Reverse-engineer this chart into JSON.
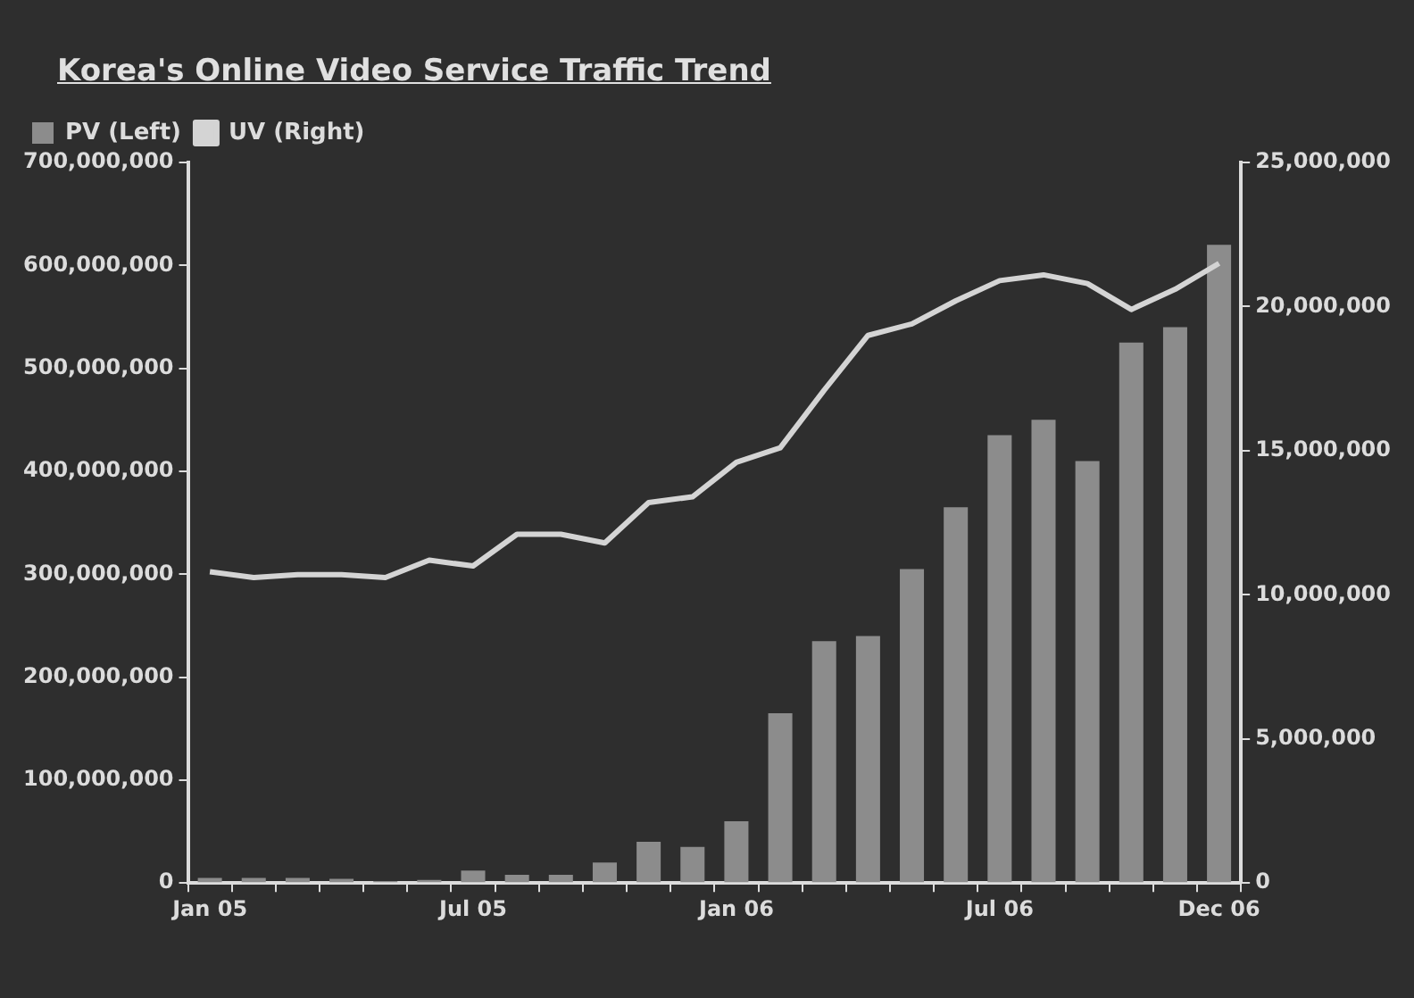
{
  "chart_data": {
    "type": "bar",
    "title": "Korea's Online Video Service Traffic Trend",
    "categories": [
      "Jan 05",
      null,
      null,
      null,
      null,
      null,
      "Jul 05",
      null,
      null,
      null,
      null,
      null,
      "Jan 06",
      null,
      null,
      null,
      null,
      null,
      "Jul 06",
      null,
      null,
      null,
      null,
      "Dec 06"
    ],
    "series": [
      {
        "name": "PV (Left)",
        "color": "#8c8c8c",
        "values": [
          5000000,
          5000000,
          5000000,
          4000000,
          2000000,
          3000000,
          12000000,
          8000000,
          8000000,
          20000000,
          40000000,
          35000000,
          60000000,
          165000000,
          235000000,
          240000000,
          305000000,
          365000000,
          435000000,
          450000000,
          410000000,
          525000000,
          540000000,
          620000000
        ]
      },
      {
        "name": "UV (Right)",
        "type": "line",
        "axis": "y2",
        "color": "#d4d4d4",
        "values": [
          10800000,
          10600000,
          10700000,
          10700000,
          10600000,
          11200000,
          11000000,
          12100000,
          12100000,
          11800000,
          13200000,
          13400000,
          14600000,
          15100000,
          17100000,
          19000000,
          19400000,
          20200000,
          20900000,
          21100000,
          20800000,
          19900000,
          20600000,
          21500000
        ]
      }
    ],
    "ylim": [
      0,
      700000000
    ],
    "yticks": [
      {
        "value": 0,
        "label": "0"
      },
      {
        "value": 100000000,
        "label": "100,000,000"
      },
      {
        "value": 200000000,
        "label": "200,000,000"
      },
      {
        "value": 300000000,
        "label": "300,000,000"
      },
      {
        "value": 400000000,
        "label": "400,000,000"
      },
      {
        "value": 500000000,
        "label": "500,000,000"
      },
      {
        "value": 600000000,
        "label": "600,000,000"
      },
      {
        "value": 700000000,
        "label": "700,000,000"
      }
    ],
    "y2lim": [
      0,
      25000000
    ],
    "y2ticks": [
      {
        "value": 0,
        "label": "0"
      },
      {
        "value": 5000000,
        "label": "5,000,000"
      },
      {
        "value": 10000000,
        "label": "10,000,000"
      },
      {
        "value": 15000000,
        "label": "15,000,000"
      },
      {
        "value": 20000000,
        "label": "20,000,000"
      },
      {
        "value": 25000000,
        "label": "25,000,000"
      }
    ],
    "grid": false,
    "legend": "top left",
    "marker": "none"
  }
}
